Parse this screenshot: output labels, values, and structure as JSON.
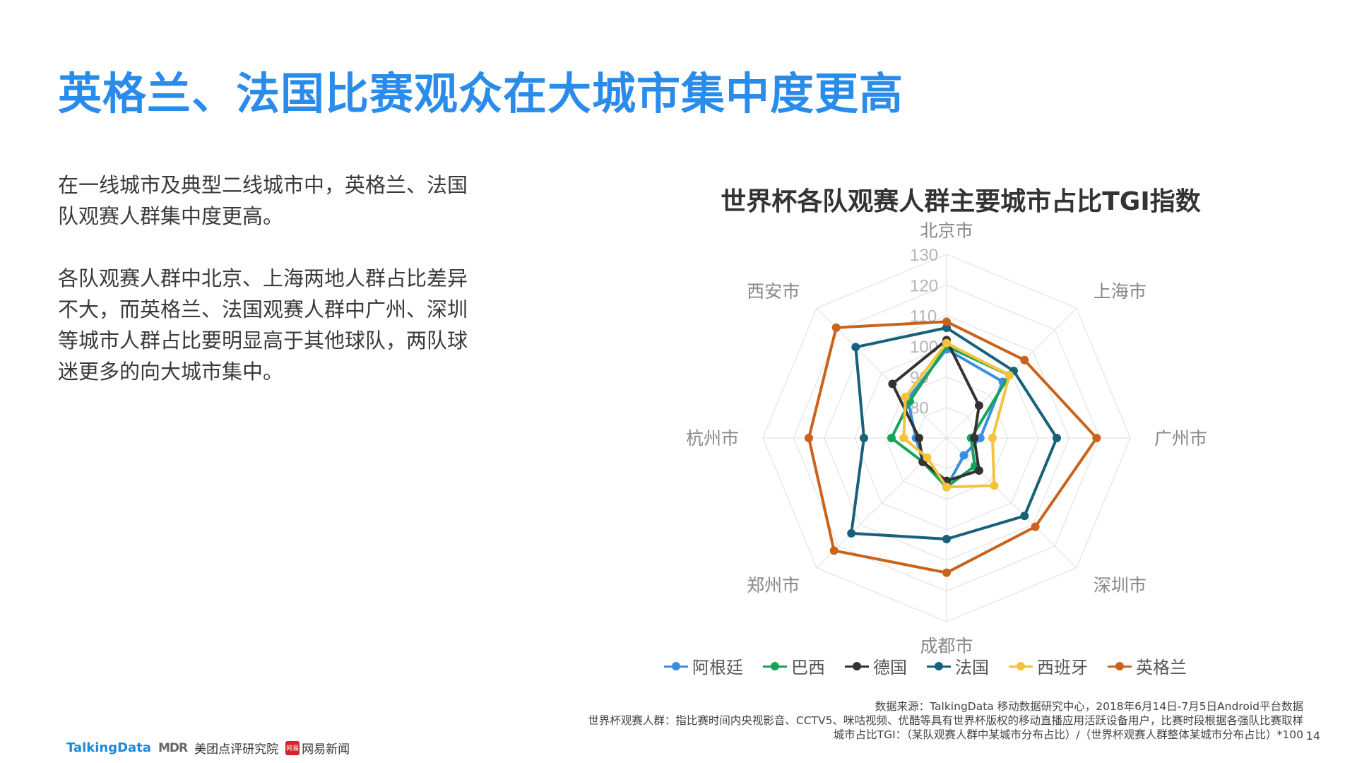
{
  "page": {
    "title": "英格兰、法国比赛观众在大城市集中度更高",
    "paragraphs": [
      "在一线城市及典型二线城市中，英格兰、法国队观赛人群集中度更高。",
      "各队观赛人群中北京、上海两地人群占比差异不大，而英格兰、法国观赛人群中广州、深圳等城市人群占比要明显高于其他球队，两队球迷更多的向大城市集中。"
    ],
    "source_lines": [
      "数据来源：TalkingData 移动数据研究中心，2018年6月14日-7月5日Android平台数据",
      "世界杯观赛人群：指比赛时间内央视影音、CCTV5、咪咕视频、优酷等具有世界杯版权的移动直播应用活跃设备用户，比赛时段根据各强队比赛取样",
      "城市占比TGI：（某队观赛人群中某城市分布占比）/（世界杯观赛人群整体某城市分布占比）*100"
    ],
    "page_number": "14",
    "logos": {
      "talkingdata": "TalkingData",
      "mdr": "MDR",
      "meituan": "美团点评研究院",
      "netease_badge": "网易",
      "netease": "网易新闻"
    }
  },
  "chart_data": {
    "type": "radar",
    "title": "世界杯各队观赛人群主要城市占比TGI指数",
    "categories": [
      "北京市",
      "上海市",
      "广州市",
      "深圳市",
      "成都市",
      "郑州市",
      "杭州市",
      "西安市"
    ],
    "rlim": [
      70,
      130
    ],
    "ticks": [
      80,
      90,
      100,
      110,
      120,
      130
    ],
    "grid": true,
    "legend_position": "bottom",
    "series": [
      {
        "name": "阿根廷",
        "color": "#3b8fe0",
        "values": [
          99,
          96,
          81,
          78,
          86,
          81,
          80,
          88
        ]
      },
      {
        "name": "巴西",
        "color": "#16a35a",
        "values": [
          100,
          99,
          78,
          83,
          86,
          81,
          88,
          87
        ]
      },
      {
        "name": "德国",
        "color": "#333333",
        "values": [
          102,
          85,
          79,
          85,
          84,
          81,
          79,
          95
        ]
      },
      {
        "name": "法国",
        "color": "#17617a",
        "values": [
          106,
          101,
          106,
          106,
          103,
          114,
          97,
          112
        ]
      },
      {
        "name": "西班牙",
        "color": "#f3c33a",
        "values": [
          101,
          99,
          85,
          92,
          86,
          79,
          84,
          89
        ]
      },
      {
        "name": "英格兰",
        "color": "#c9621a",
        "values": [
          108,
          106,
          119,
          111,
          114,
          122,
          115,
          121
        ]
      }
    ]
  }
}
